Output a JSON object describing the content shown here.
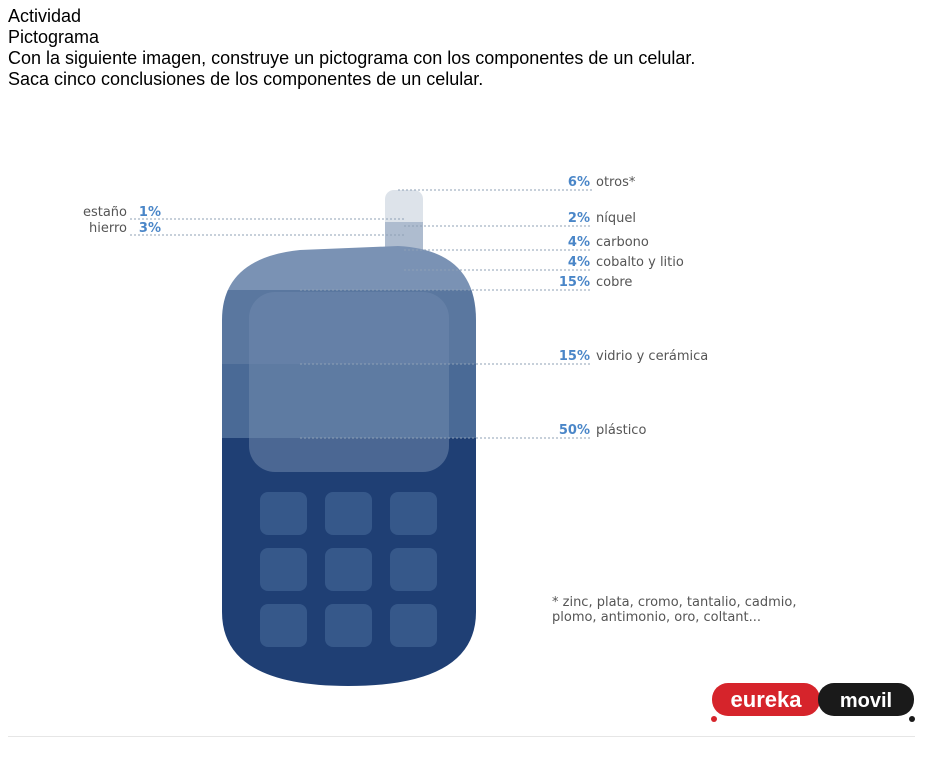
{
  "instructions": {
    "line1": "Actividad",
    "line2": "Pictograma",
    "line3": "Con la siguiente imagen, construye un pictograma con los componentes de un celular.",
    "line4": "Saca cinco conclusiones de los componentes de un celular."
  },
  "chart_data": {
    "type": "pictogram",
    "unit": "%",
    "components": [
      {
        "label": "otros*",
        "value": 6,
        "display": "6%"
      },
      {
        "label": "níquel",
        "value": 2,
        "display": "2%"
      },
      {
        "label": "carbono",
        "value": 4,
        "display": "4%"
      },
      {
        "label": "cobalto y litio",
        "value": 4,
        "display": "4%"
      },
      {
        "label": "cobre",
        "value": 15,
        "display": "15%"
      },
      {
        "label": "vidrio y cerámica",
        "value": 15,
        "display": "15%"
      },
      {
        "label": "plástico",
        "value": 50,
        "display": "50%"
      },
      {
        "label": "estaño",
        "value": 1,
        "display": "1%"
      },
      {
        "label": "hierro",
        "value": 3,
        "display": "3%"
      }
    ],
    "footnote_line1": "* zinc, plata, cromo, tantalio, cadmio,",
    "footnote_line2": "plomo, antimonio, oro, coltant..."
  },
  "colors": {
    "phone_top": "#dde3ea",
    "phone_light": "#7a92b4",
    "phone_mid": "#5a779f",
    "phone_midb": "#4a6a96",
    "phone_dark": "#1f3f74",
    "screen": "#6f89ad",
    "key": "#36588a",
    "percent": "#4a86c8",
    "label": "#555555"
  },
  "logo": {
    "left": "eureka",
    "right": "movil",
    "left_color": "#d6242b",
    "right_color": "#1a1a1a"
  }
}
